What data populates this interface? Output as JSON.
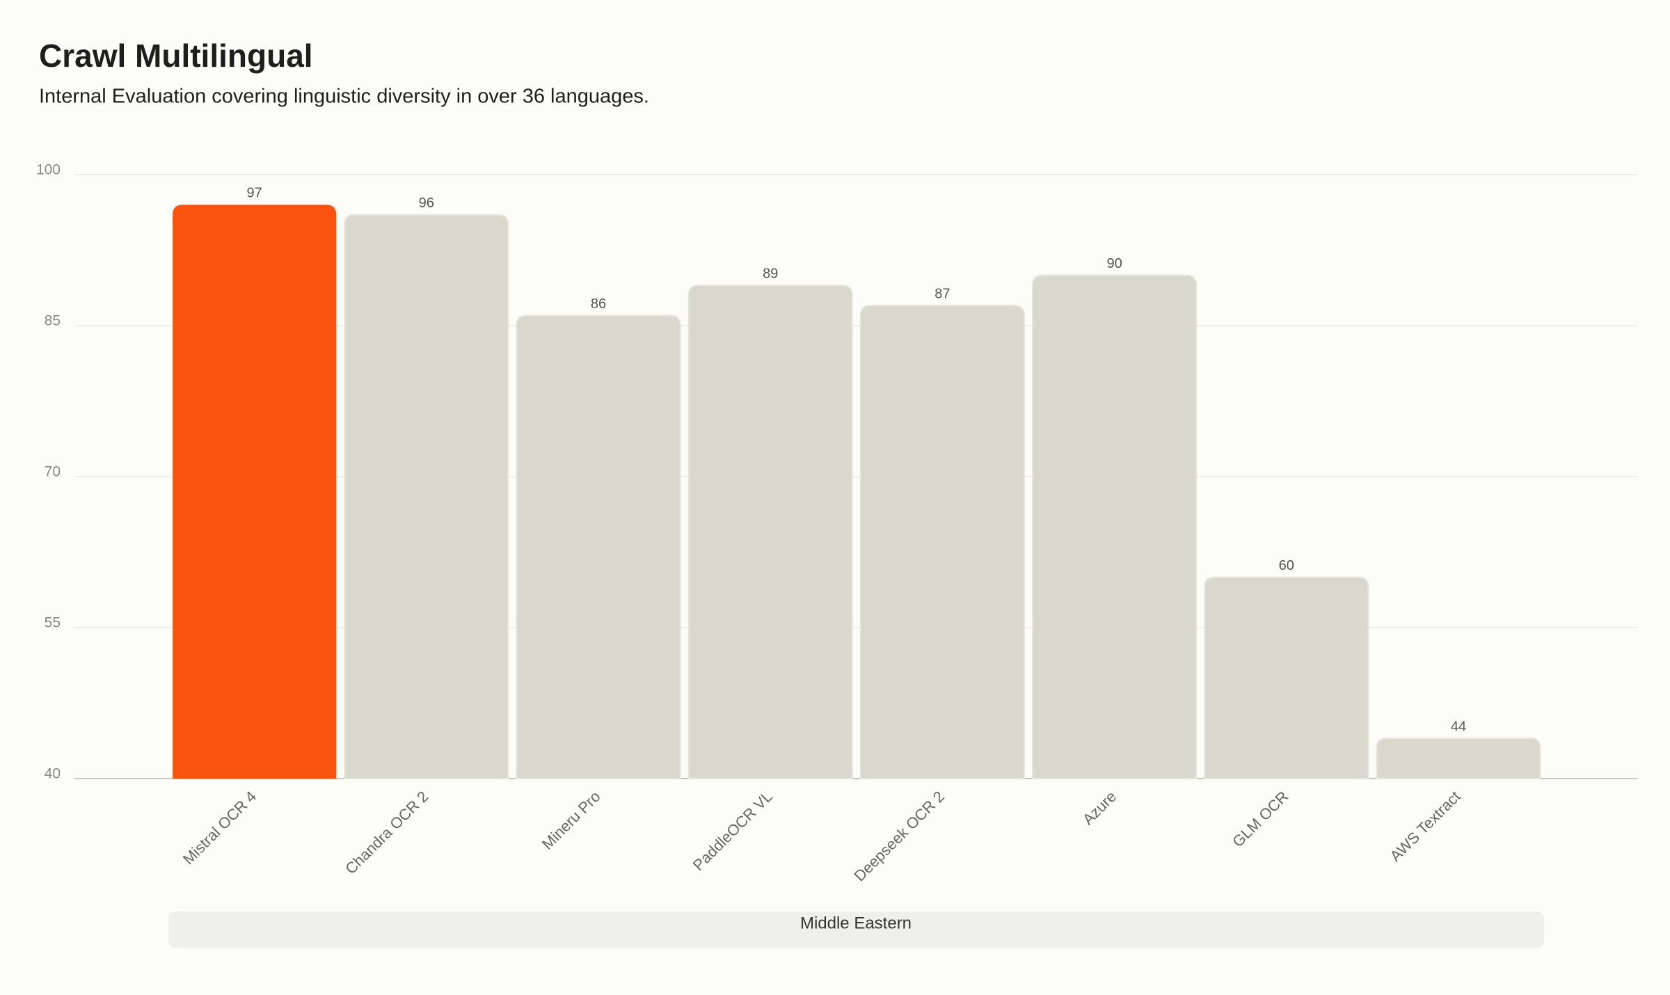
{
  "chart_data": {
    "type": "bar",
    "title": "Crawl Multilingual",
    "subtitle": "Internal Evaluation covering linguistic diversity in over 36 languages.",
    "categories": [
      "Mistral OCR 4",
      "Chandra OCR 2",
      "Mineru Pro",
      "PaddleOCR VL",
      "Deepseek OCR 2",
      "Azure",
      "GLM OCR",
      "AWS Textract"
    ],
    "values": [
      97,
      96,
      86,
      89,
      87,
      90,
      60,
      44
    ],
    "colors": [
      "#fa520f",
      "#d9d8ce",
      "#d9d8ce",
      "#d9d8ce",
      "#d9d8ce",
      "#d9d8ce",
      "#d9d8ce",
      "#d9d8ce"
    ],
    "group_label": "Middle Eastern",
    "ylim": [
      40,
      100
    ],
    "yticks": [
      40,
      55,
      70,
      85,
      100
    ],
    "grid": true
  }
}
